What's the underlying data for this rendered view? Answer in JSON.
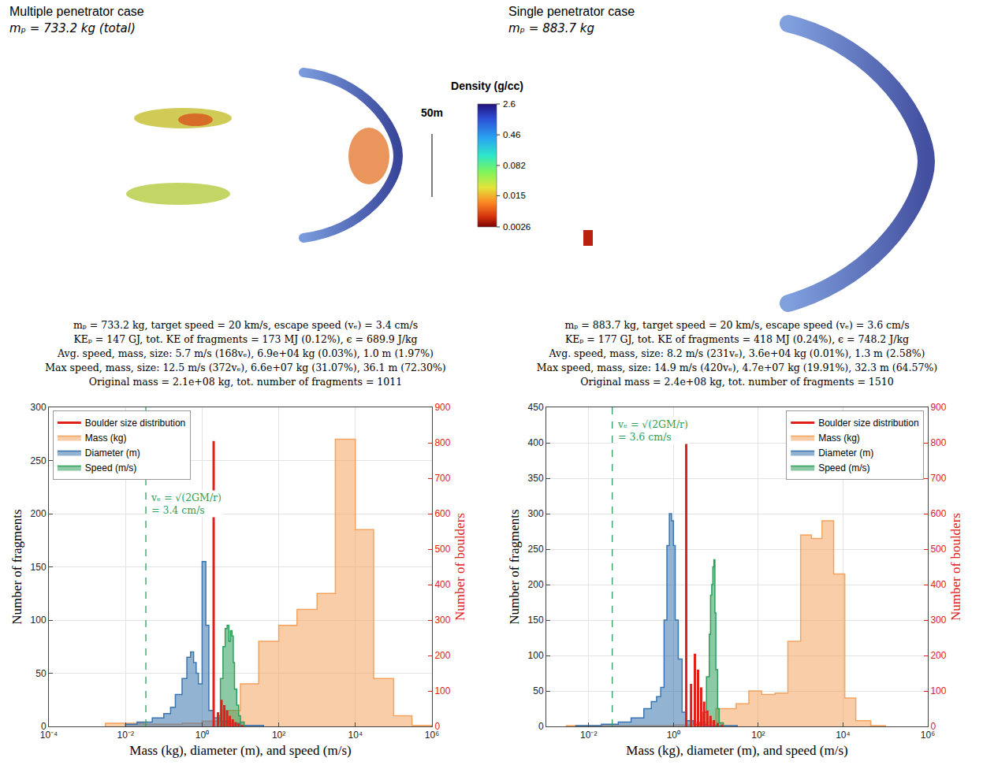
{
  "chart_data": [
    {
      "type": "histogram",
      "panel_title": "Multiple penetrator case",
      "panel_subtitle": "mₚ = 733.2 kg (total)",
      "stats": [
        "mₚ = 733.2 kg, target speed = 20 km/s, escape speed (vₑ) = 3.4 cm/s",
        "KEₚ = 147 GJ, tot. KE of fragments = 173 MJ (0.12%), ϵ = 689.9 J/kg",
        "Avg. speed, mass, size: 5.7 m/s (168vₑ), 6.9e+04 kg (0.03%), 1.0 m (1.97%)",
        "Max speed, mass, size: 12.5 m/s (372vₑ), 6.6e+07 kg (31.07%), 36.1 m (72.30%)",
        "Original mass = 2.1e+08 kg, tot. number of fragments = 1011"
      ],
      "xlabel": "Mass (kg), diameter (m), and speed (m/s)",
      "ylabel": "Number of fragments",
      "y2label": "Number of boulders",
      "log": "x",
      "grid": true,
      "legend": "top left",
      "xlim": [
        0.0001,
        1000000
      ],
      "xticks": [
        {
          "value": 0.0001,
          "label": "10⁻⁴"
        },
        {
          "value": 0.01,
          "label": "10⁻²"
        },
        {
          "value": 1,
          "label": "10⁰"
        },
        {
          "value": 100,
          "label": "10²"
        },
        {
          "value": 10000,
          "label": "10⁴"
        },
        {
          "value": 1000000,
          "label": "10⁶"
        }
      ],
      "ylim": [
        0,
        300
      ],
      "yticks": [
        0,
        50,
        100,
        150,
        200,
        250,
        300
      ],
      "y2lim": [
        0,
        900
      ],
      "y2ticks": [
        0,
        100,
        200,
        300,
        400,
        500,
        600,
        700,
        800,
        900
      ],
      "escape_speed": 0.034,
      "escape_label": [
        "vₑ = √(2GM/r)",
        "= 3.4 cm/s"
      ],
      "escape_color": "#2e9e5b",
      "series": [
        {
          "name": "Boulder size distribution",
          "type": "stem",
          "axis": "y2",
          "color": "#e0201b",
          "x": [
            2.0,
            2.6,
            3.2,
            3.8,
            4.5,
            5.3,
            6.3,
            7.5,
            9,
            11
          ],
          "values": [
            805,
            40,
            75,
            60,
            45,
            30,
            20,
            12,
            8,
            4
          ]
        },
        {
          "name": "Mass (kg)",
          "type": "step",
          "color": "#f4a460",
          "bins": [
            0.003,
            0.01,
            0.03,
            0.1,
            0.3,
            1,
            3,
            10,
            30,
            100,
            300,
            1000,
            3000,
            10000,
            30000,
            100000,
            300000,
            1000000
          ],
          "values": [
            3,
            3,
            2,
            2,
            3,
            5,
            15,
            40,
            80,
            95,
            110,
            125,
            270,
            185,
            45,
            10,
            1
          ]
        },
        {
          "name": "Diameter (m)",
          "type": "step",
          "color": "#3b75af",
          "bins": [
            0.01,
            0.02,
            0.05,
            0.1,
            0.15,
            0.2,
            0.3,
            0.4,
            0.5,
            0.6,
            0.7,
            0.8,
            1.0,
            1.25,
            1.5,
            2,
            3,
            5,
            10,
            40
          ],
          "values": [
            2,
            4,
            8,
            12,
            18,
            30,
            45,
            65,
            70,
            60,
            50,
            40,
            155,
            95,
            15,
            8,
            5,
            3,
            1
          ]
        },
        {
          "name": "Speed (m/s)",
          "type": "step",
          "color": "#2e9e5b",
          "bins": [
            2.5,
            3,
            3.5,
            4,
            4.5,
            5,
            5.5,
            6,
            6.5,
            7,
            8,
            9,
            10,
            12.5
          ],
          "values": [
            10,
            45,
            75,
            92,
            95,
            80,
            90,
            85,
            60,
            35,
            20,
            10,
            4
          ]
        }
      ]
    },
    {
      "type": "histogram",
      "panel_title": "Single penetrator case",
      "panel_subtitle": "mₚ = 883.7 kg",
      "stats": [
        "mₚ = 883.7 kg, target speed = 20 km/s, escape speed (vₑ) = 3.6 cm/s",
        "KEₚ = 177 GJ, tot. KE of fragments = 418 MJ (0.24%), ϵ = 748.2 J/kg",
        "Avg. speed, mass, size: 8.2 m/s (231vₑ), 3.6e+04 kg (0.01%), 1.3 m (2.58%)",
        "Max speed, mass, size: 14.9 m/s (420vₑ), 4.7e+07 kg (19.91%), 32.3 m (64.57%)",
        "Original mass = 2.4e+08 kg, tot. number of fragments = 1510"
      ],
      "xlabel": "Mass (kg), diameter (m), and speed (m/s)",
      "ylabel": "Number of fragments",
      "y2label": "Number of boulders",
      "log": "x",
      "grid": true,
      "legend": "top right",
      "xlim": [
        0.001,
        1000000
      ],
      "xticks": [
        {
          "value": 0.01,
          "label": "10⁻²"
        },
        {
          "value": 1,
          "label": "10⁰"
        },
        {
          "value": 100,
          "label": "10²"
        },
        {
          "value": 10000,
          "label": "10⁴"
        },
        {
          "value": 1000000,
          "label": "10⁶"
        }
      ],
      "ylim": [
        0,
        450
      ],
      "yticks": [
        0,
        50,
        100,
        150,
        200,
        250,
        300,
        350,
        400,
        450
      ],
      "y2lim": [
        0,
        900
      ],
      "y2ticks": [
        0,
        100,
        200,
        300,
        400,
        500,
        600,
        700,
        800,
        900
      ],
      "escape_speed": 0.036,
      "escape_label": [
        "vₑ = √(2GM/r)",
        "= 3.6 cm/s"
      ],
      "escape_color": "#2e9e5b",
      "series": [
        {
          "name": "Boulder size distribution",
          "type": "stem",
          "axis": "y2",
          "color": "#e0201b",
          "x": [
            2.0,
            2.6,
            3.2,
            3.8,
            4.5,
            5.3,
            6.3,
            7.5,
            9,
            11,
            14
          ],
          "values": [
            800,
            120,
            205,
            160,
            110,
            70,
            45,
            30,
            18,
            10,
            5
          ]
        },
        {
          "name": "Mass (kg)",
          "type": "step",
          "color": "#f4a460",
          "bins": [
            0.003,
            1,
            3,
            10,
            30,
            60,
            120,
            250,
            500,
            1000,
            1800,
            3200,
            6000,
            11000,
            20000,
            45000,
            100000
          ],
          "values": [
            1,
            2,
            6,
            25,
            32,
            50,
            45,
            47,
            120,
            270,
            265,
            290,
            215,
            40,
            8,
            1
          ]
        },
        {
          "name": "Diameter (m)",
          "type": "step",
          "color": "#3b75af",
          "bins": [
            0.005,
            0.02,
            0.05,
            0.1,
            0.2,
            0.3,
            0.4,
            0.5,
            0.6,
            0.7,
            0.8,
            0.9,
            1.0,
            1.1,
            1.3,
            1.6,
            2,
            3,
            6,
            32
          ],
          "values": [
            1,
            3,
            6,
            12,
            25,
            35,
            42,
            55,
            150,
            255,
            300,
            290,
            255,
            150,
            95,
            20,
            8,
            3,
            1
          ]
        },
        {
          "name": "Speed (m/s)",
          "type": "step",
          "color": "#2e9e5b",
          "bins": [
            4,
            5,
            6,
            7,
            7.5,
            8,
            8.5,
            9,
            9.5,
            10,
            11,
            12,
            15
          ],
          "values": [
            5,
            20,
            70,
            130,
            185,
            200,
            225,
            235,
            160,
            80,
            25,
            5
          ]
        }
      ]
    }
  ],
  "colorbar": {
    "title": "Density (g/cc)",
    "log": true,
    "range": [
      0.0026,
      2.6
    ],
    "ticks": [
      2.6,
      0.46,
      0.082,
      0.015,
      0.0026
    ]
  },
  "scale_bar": {
    "label": "50m"
  }
}
